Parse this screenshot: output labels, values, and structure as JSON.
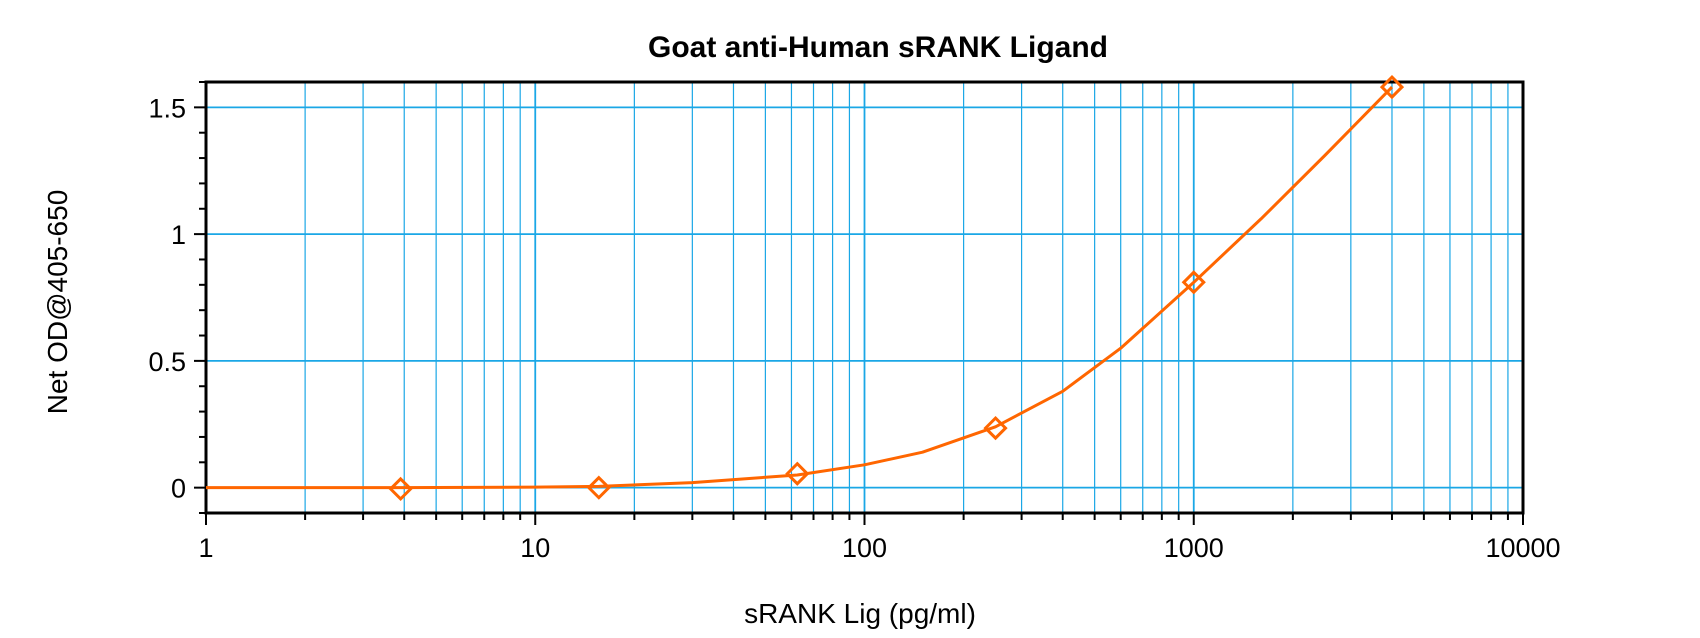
{
  "chart_data": {
    "type": "line",
    "title": "Goat anti-Human sRANK Ligand",
    "xlabel": "sRANK Lig (pg/ml)",
    "ylabel": "Net OD@405-650",
    "x_scale": "log",
    "xlim": [
      1,
      10000
    ],
    "ylim": [
      -0.1,
      1.6
    ],
    "x_ticks": [
      1,
      10,
      100,
      1000,
      10000
    ],
    "x_tick_labels": [
      "1",
      "10",
      "100",
      "1000",
      "10000"
    ],
    "y_ticks": [
      0,
      0.5,
      1,
      1.5
    ],
    "y_tick_labels": [
      "0",
      "0.5",
      "1",
      "1.5"
    ],
    "grid": true,
    "series": [
      {
        "marker": "diamond",
        "color": "#ff6600",
        "x": [
          3.9,
          15.6,
          62.5,
          250,
          1000,
          4000
        ],
        "y": [
          -0.005,
          0.0,
          0.055,
          0.235,
          0.81,
          1.58
        ]
      }
    ],
    "fit_curve": {
      "color": "#ff6600",
      "x": [
        1,
        3.9,
        10,
        15.6,
        30,
        62.5,
        100,
        150,
        250,
        400,
        600,
        1000,
        1600,
        2500,
        4000
      ],
      "y": [
        0.0,
        0.0,
        0.002,
        0.005,
        0.02,
        0.05,
        0.09,
        0.14,
        0.24,
        0.38,
        0.55,
        0.81,
        1.06,
        1.31,
        1.58
      ]
    }
  },
  "colors": {
    "grid_major": "#1aa7e6",
    "grid_minor": "#1aa7e6",
    "frame": "#000000",
    "series": "#ff6600"
  }
}
